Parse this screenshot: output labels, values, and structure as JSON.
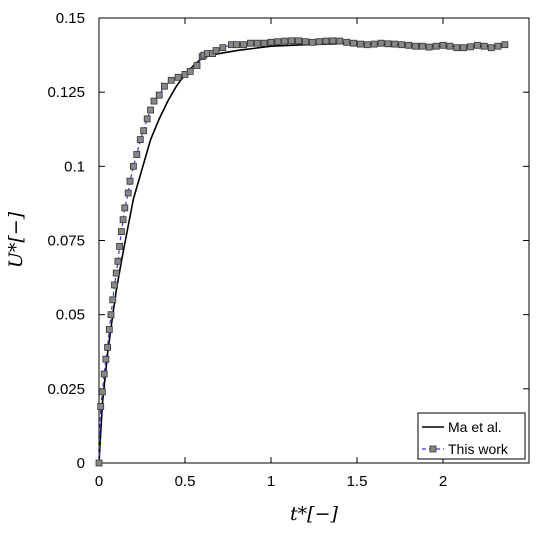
{
  "chart_data": {
    "type": "line",
    "xlabel": "t*[−]",
    "ylabel": "U*[−]",
    "xlim": [
      0,
      2.5
    ],
    "ylim": [
      0,
      0.15
    ],
    "xticks": [
      {
        "value": 0,
        "label": "0"
      },
      {
        "value": 0.5,
        "label": "0.5"
      },
      {
        "value": 1,
        "label": "1"
      },
      {
        "value": 1.5,
        "label": "1.5"
      },
      {
        "value": 2,
        "label": "2"
      }
    ],
    "yticks": [
      {
        "value": 0,
        "label": "0"
      },
      {
        "value": 0.025,
        "label": "0.025"
      },
      {
        "value": 0.05,
        "label": "0.05"
      },
      {
        "value": 0.075,
        "label": "0.075"
      },
      {
        "value": 0.1,
        "label": "0.1"
      },
      {
        "value": 0.125,
        "label": "0.125"
      },
      {
        "value": 0.15,
        "label": "0.15"
      }
    ],
    "grid": false,
    "legend_position": "bottom-right",
    "series": [
      {
        "name": "Ma et al.",
        "style": "solid",
        "color": "#000000",
        "x": [
          0,
          0.02,
          0.05,
          0.08,
          0.1,
          0.13,
          0.16,
          0.2,
          0.25,
          0.3,
          0.35,
          0.4,
          0.45,
          0.5,
          0.55,
          0.6,
          0.65,
          0.7,
          0.8,
          1.0,
          1.2,
          1.5,
          1.8,
          2.0,
          2.2,
          2.37
        ],
        "y": [
          0,
          0.02,
          0.037,
          0.05,
          0.058,
          0.068,
          0.077,
          0.089,
          0.099,
          0.109,
          0.116,
          0.122,
          0.127,
          0.131,
          0.134,
          0.1365,
          0.1375,
          0.138,
          0.139,
          0.1405,
          0.141,
          0.1415,
          0.141,
          0.1405,
          0.1405,
          0.1405
        ]
      },
      {
        "name": "This work",
        "style": "dashed",
        "color": "#3a3ae0",
        "marker": "square",
        "marker_color": "#888888",
        "x": [
          0,
          0.01,
          0.02,
          0.03,
          0.04,
          0.05,
          0.06,
          0.07,
          0.08,
          0.09,
          0.1,
          0.11,
          0.12,
          0.13,
          0.14,
          0.15,
          0.17,
          0.18,
          0.2,
          0.22,
          0.24,
          0.26,
          0.28,
          0.3,
          0.32,
          0.35,
          0.38,
          0.42,
          0.46,
          0.5,
          0.53,
          0.57,
          0.6,
          0.61,
          0.63,
          0.66,
          0.68,
          0.72,
          0.77,
          0.8,
          0.84,
          0.88,
          0.92,
          0.96,
          1.0,
          1.04,
          1.08,
          1.12,
          1.16,
          1.2,
          1.24,
          1.28,
          1.32,
          1.36,
          1.4,
          1.44,
          1.48,
          1.52,
          1.56,
          1.6,
          1.64,
          1.68,
          1.72,
          1.76,
          1.8,
          1.84,
          1.88,
          1.92,
          1.96,
          2.0,
          2.04,
          2.08,
          2.12,
          2.16,
          2.2,
          2.24,
          2.28,
          2.32,
          2.36
        ],
        "y": [
          0,
          0.019,
          0.024,
          0.03,
          0.035,
          0.039,
          0.045,
          0.05,
          0.055,
          0.06,
          0.064,
          0.068,
          0.073,
          0.078,
          0.082,
          0.086,
          0.091,
          0.095,
          0.1,
          0.104,
          0.109,
          0.112,
          0.116,
          0.119,
          0.122,
          0.124,
          0.127,
          0.129,
          0.13,
          0.131,
          0.132,
          0.134,
          0.137,
          0.1375,
          0.138,
          0.138,
          0.139,
          0.14,
          0.141,
          0.141,
          0.141,
          0.1415,
          0.1415,
          0.1415,
          0.1418,
          0.142,
          0.1422,
          0.1423,
          0.1423,
          0.142,
          0.1418,
          0.142,
          0.1422,
          0.1423,
          0.1422,
          0.1418,
          0.1415,
          0.1412,
          0.141,
          0.1412,
          0.1415,
          0.1413,
          0.1412,
          0.141,
          0.1408,
          0.1405,
          0.1405,
          0.1402,
          0.1405,
          0.1408,
          0.1405,
          0.14,
          0.14,
          0.1403,
          0.1408,
          0.1405,
          0.14,
          0.1405,
          0.141
        ]
      }
    ]
  }
}
